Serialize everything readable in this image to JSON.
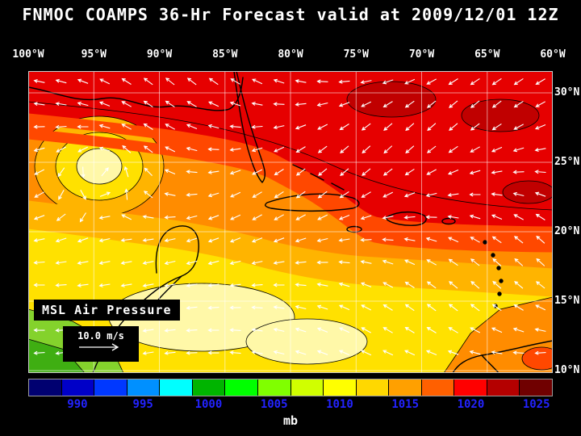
{
  "title": "FNMOC COAMPS 36-Hr Forecast valid at 2009/12/01 12Z",
  "map": {
    "overlay_label": "MSL Air Pressure",
    "wind_scale_label": "10.0 m/s",
    "lon_labels": [
      "100°W",
      "95°W",
      "90°W",
      "85°W",
      "80°W",
      "75°W",
      "70°W",
      "65°W",
      "60°W"
    ],
    "lat_labels": [
      "30°N",
      "25°N",
      "20°N",
      "15°N",
      "10°N"
    ]
  },
  "colorbar": {
    "unit": "mb",
    "ticks": [
      "990",
      "995",
      "1000",
      "1005",
      "1010",
      "1015",
      "1020",
      "1025"
    ],
    "tick_color": "#2323ff",
    "colors": [
      "#000070",
      "#0000c8",
      "#0038ff",
      "#0090ff",
      "#00ffff",
      "#00b400",
      "#00ff00",
      "#80ff00",
      "#d0ff00",
      "#ffff00",
      "#ffd800",
      "#ffa000",
      "#ff6000",
      "#ff0000",
      "#b40000",
      "#700000"
    ]
  },
  "chart_data": {
    "type": "heatmap",
    "title": "FNMOC COAMPS 36-Hr Forecast valid at 2009/12/01 12Z",
    "field": "MSL Air Pressure",
    "unit": "mb",
    "colorbar_ticks": [
      990,
      995,
      1000,
      1005,
      1010,
      1015,
      1020,
      1025
    ],
    "scale_range": [
      987.5,
      1027.5
    ],
    "x_axis": {
      "label": "longitude",
      "ticks": [
        "100°W",
        "95°W",
        "90°W",
        "85°W",
        "80°W",
        "75°W",
        "70°W",
        "65°W",
        "60°W"
      ]
    },
    "y_axis": {
      "label": "latitude",
      "ticks": [
        "30°N",
        "25°N",
        "20°N",
        "15°N",
        "10°N"
      ]
    },
    "overlays": [
      "wind vectors (white arrows)",
      "coastlines",
      "lat/lon grid"
    ],
    "wind_reference_vector": "10.0 m/s",
    "approx_field": [
      {
        "region": "25-30N band and western Atlantic",
        "pressure_mb": "1015-1020 (red)"
      },
      {
        "region": "20-25N band",
        "pressure_mb": "1012-1015 (orange)"
      },
      {
        "region": "10-18N Caribbean",
        "pressure_mb": "1008-1012 (yellow)"
      },
      {
        "region": "southwest corner (E Pacific ~10N 95-100W)",
        "pressure_mb": "1003-1008 (green)"
      },
      {
        "region": "closed low, western Gulf of Mexico ~24N 94W",
        "pressure_mb": "~1009 (pale yellow core)"
      },
      {
        "region": "bottom-right (S America coast)",
        "pressure_mb": "1012-1015 (orange)"
      }
    ]
  }
}
